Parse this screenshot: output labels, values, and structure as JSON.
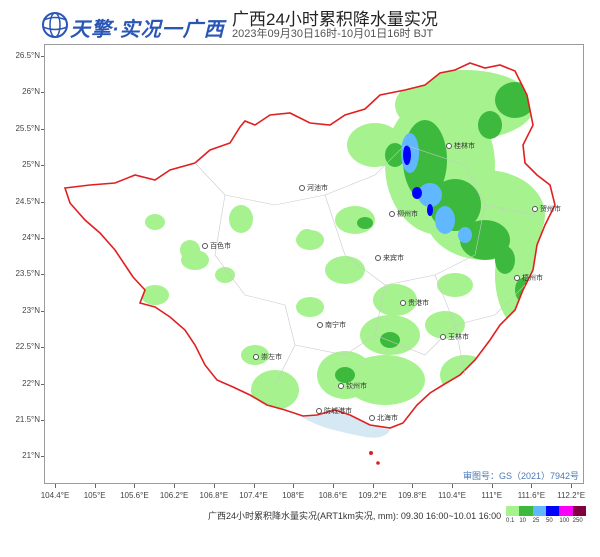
{
  "header": {
    "logo_text": "天擎·实况一广西",
    "title": "广西24小时累积降水量实况",
    "subtitle": "2023年09月30日16时-10月01日16时 BJT"
  },
  "map": {
    "latitude_labels": [
      "26.5°N",
      "26°N",
      "25.5°N",
      "25°N",
      "24.5°N",
      "24°N",
      "23.5°N",
      "23°N",
      "22.5°N",
      "22°N",
      "21.5°N",
      "21°N"
    ],
    "longitude_labels": [
      "104.4°E",
      "105°E",
      "105.6°E",
      "106.2°E",
      "106.8°E",
      "107.4°E",
      "108°E",
      "108.6°E",
      "109.2°E",
      "109.8°E",
      "110.4°E",
      "111°E",
      "111.6°E",
      "112.2°E"
    ],
    "cities": [
      {
        "name": "桂林市"
      },
      {
        "name": "河池市"
      },
      {
        "name": "柳州市"
      },
      {
        "name": "贺州市"
      },
      {
        "name": "百色市"
      },
      {
        "name": "来宾市"
      },
      {
        "name": "梧州市"
      },
      {
        "name": "贵港市"
      },
      {
        "name": "南宁市"
      },
      {
        "name": "玉林市"
      },
      {
        "name": "崇左市"
      },
      {
        "name": "钦州市"
      },
      {
        "name": "防城港市"
      },
      {
        "name": "北海市"
      }
    ],
    "approval_text": "审图号：GS（2021）7942号",
    "colors": {
      "boundary": "#e02020",
      "rain_light": "#a6f28f",
      "rain_moderate": "#3dba3d",
      "rain_heavy": "#61b8ff",
      "rain_storm": "#0000ff",
      "sea": "#bcd8ee"
    }
  },
  "footer": {
    "caption": "广西24小时累积降水量实况(ART1km实况, mm): 09.30 16:00~10.01 16:00"
  },
  "legend": {
    "labels": [
      "0.1",
      "10",
      "25",
      "50",
      "100",
      "250"
    ],
    "colors": [
      "#a6f28f",
      "#3dba3d",
      "#61b8ff",
      "#0000ff",
      "#fa00fa",
      "#800040"
    ]
  }
}
